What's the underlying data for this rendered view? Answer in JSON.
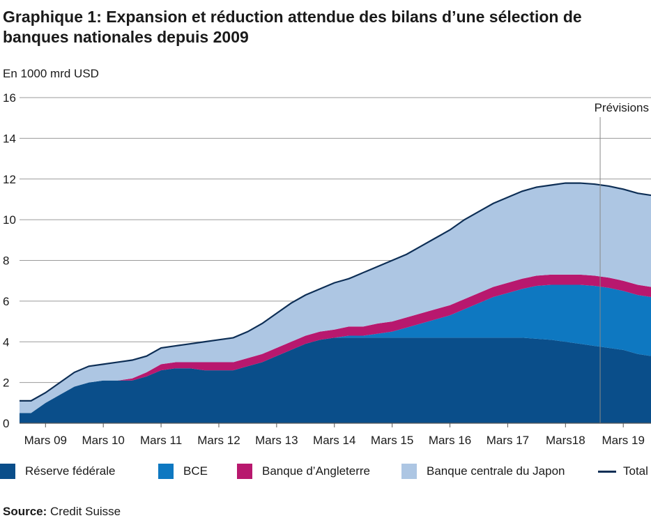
{
  "header": {
    "title": "Graphique 1: Expansion et réduction attendue des bilans d’une sélection de banques nationales depuis 2009",
    "unit": "En 1000 mrd USD"
  },
  "source": {
    "label": "Source:",
    "text": "Credit Suisse"
  },
  "colors": {
    "fed": "#0a4e8a",
    "ecb": "#0e78c1",
    "boe": "#b8186e",
    "boj": "#adc6e3",
    "total": "#0d2e55",
    "grid": "#9a9a9a",
    "marker": "#888888"
  },
  "chart_data": {
    "type": "area",
    "stacked": true,
    "x_unit": "year",
    "xlim": [
      2008.8,
      2019.73
    ],
    "ylim": [
      0,
      16
    ],
    "y_ticks": [
      0,
      2,
      4,
      6,
      8,
      10,
      12,
      14,
      16
    ],
    "x_tick_labels": [
      {
        "x": 2009.25,
        "label": "Mars 09"
      },
      {
        "x": 2010.25,
        "label": "Mars 10"
      },
      {
        "x": 2011.25,
        "label": "Mars 11"
      },
      {
        "x": 2012.25,
        "label": "Mars 12"
      },
      {
        "x": 2013.25,
        "label": "Mars 13"
      },
      {
        "x": 2014.25,
        "label": "Mars 14"
      },
      {
        "x": 2015.25,
        "label": "Mars 15"
      },
      {
        "x": 2016.25,
        "label": "Mars 16"
      },
      {
        "x": 2017.25,
        "label": "Mars 17"
      },
      {
        "x": 2018.25,
        "label": "Mars18"
      },
      {
        "x": 2019.25,
        "label": "Mars 19"
      }
    ],
    "forecast_marker": {
      "x": 2018.85,
      "label": "Prévisions"
    },
    "grid": true,
    "legend_position": "bottom",
    "x": [
      2008.8,
      2009.0,
      2009.25,
      2009.5,
      2009.75,
      2010.0,
      2010.25,
      2010.5,
      2010.75,
      2011.0,
      2011.25,
      2011.5,
      2011.75,
      2012.0,
      2012.25,
      2012.5,
      2012.75,
      2013.0,
      2013.25,
      2013.5,
      2013.75,
      2014.0,
      2014.25,
      2014.5,
      2014.75,
      2015.0,
      2015.25,
      2015.5,
      2015.75,
      2016.0,
      2016.25,
      2016.5,
      2016.75,
      2017.0,
      2017.25,
      2017.5,
      2017.75,
      2018.0,
      2018.25,
      2018.5,
      2018.75,
      2019.0,
      2019.25,
      2019.5,
      2019.73
    ],
    "series": [
      {
        "name": "Réserve fédérale",
        "key": "fed",
        "values": [
          0.5,
          0.5,
          1.0,
          1.4,
          1.8,
          2.0,
          2.1,
          2.1,
          2.1,
          2.3,
          2.6,
          2.7,
          2.7,
          2.6,
          2.6,
          2.6,
          2.8,
          3.0,
          3.3,
          3.6,
          3.9,
          4.1,
          4.2,
          4.2,
          4.2,
          4.2,
          4.2,
          4.2,
          4.2,
          4.2,
          4.2,
          4.2,
          4.2,
          4.2,
          4.2,
          4.2,
          4.15,
          4.1,
          4.0,
          3.9,
          3.8,
          3.7,
          3.6,
          3.4,
          3.3
        ]
      },
      {
        "name": "BCE",
        "key": "ecb",
        "values": [
          0,
          0,
          0,
          0,
          0,
          0,
          0,
          0,
          0,
          0,
          0,
          0,
          0,
          0,
          0,
          0,
          0,
          0,
          0,
          0,
          0,
          0,
          0,
          0.1,
          0.1,
          0.2,
          0.3,
          0.5,
          0.7,
          0.9,
          1.1,
          1.4,
          1.7,
          2.0,
          2.2,
          2.4,
          2.6,
          2.7,
          2.8,
          2.9,
          2.95,
          2.95,
          2.9,
          2.9,
          2.9
        ]
      },
      {
        "name": "Banque d’Angleterre",
        "key": "boe",
        "values": [
          0,
          0,
          0,
          0,
          0,
          0,
          0,
          0,
          0.1,
          0.2,
          0.3,
          0.3,
          0.3,
          0.4,
          0.4,
          0.4,
          0.4,
          0.4,
          0.4,
          0.4,
          0.4,
          0.4,
          0.4,
          0.45,
          0.45,
          0.5,
          0.5,
          0.5,
          0.5,
          0.5,
          0.5,
          0.5,
          0.5,
          0.5,
          0.5,
          0.5,
          0.5,
          0.5,
          0.5,
          0.5,
          0.5,
          0.5,
          0.5,
          0.5,
          0.5
        ]
      },
      {
        "name": "Banque centrale du Japon",
        "key": "boj",
        "values": [
          0.6,
          0.6,
          0.5,
          0.6,
          0.7,
          0.8,
          0.8,
          0.9,
          0.9,
          0.8,
          0.8,
          0.8,
          0.9,
          1.0,
          1.1,
          1.2,
          1.3,
          1.5,
          1.7,
          1.9,
          2.0,
          2.1,
          2.3,
          2.4,
          2.6,
          2.8,
          3.0,
          3.1,
          3.3,
          3.5,
          3.7,
          3.9,
          4.0,
          4.1,
          4.2,
          4.3,
          4.35,
          4.4,
          4.5,
          4.5,
          4.5,
          4.5,
          4.5,
          4.5,
          4.5
        ]
      }
    ],
    "total": {
      "name": "Total",
      "key": "total",
      "values": [
        1.1,
        1.1,
        1.5,
        2.0,
        2.5,
        2.8,
        2.9,
        3.0,
        3.1,
        3.3,
        3.7,
        3.8,
        3.9,
        4.0,
        4.1,
        4.2,
        4.5,
        4.9,
        5.4,
        5.9,
        6.3,
        6.6,
        6.9,
        7.1,
        7.4,
        7.7,
        8.0,
        8.3,
        8.7,
        9.1,
        9.5,
        10.0,
        10.4,
        10.8,
        11.1,
        11.4,
        11.6,
        11.7,
        11.8,
        11.8,
        11.75,
        11.65,
        11.5,
        11.3,
        11.2
      ]
    }
  },
  "legend": [
    {
      "label": "Réserve fédérale",
      "key": "fed",
      "type": "swatch"
    },
    {
      "label": "BCE",
      "key": "ecb",
      "type": "swatch"
    },
    {
      "label": "Banque d’Angleterre",
      "key": "boe",
      "type": "swatch"
    },
    {
      "label": "Banque centrale du Japon",
      "key": "boj",
      "type": "swatch"
    },
    {
      "label": "Total",
      "key": "total",
      "type": "line"
    }
  ]
}
